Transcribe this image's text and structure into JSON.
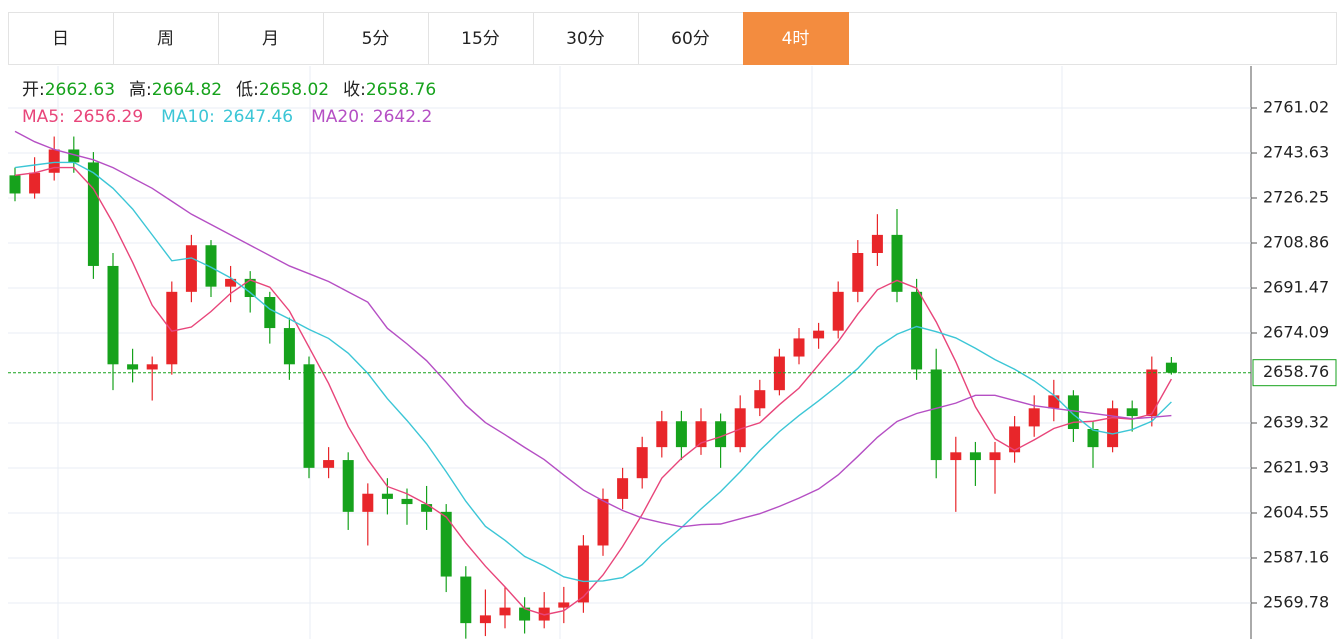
{
  "tabs": [
    "日",
    "周",
    "月",
    "5分",
    "15分",
    "30分",
    "60分",
    "4时"
  ],
  "active_tab": 7,
  "chart_data": {
    "type": "candlestick",
    "ohlc_labels": [
      "开:",
      "高:",
      "低:",
      "收:"
    ],
    "up_color": "#e8262a",
    "down_color": "#16a21c",
    "ylim": [
      2555.87,
      2777.25
    ],
    "yticks": [
      2761.02,
      2743.63,
      2726.25,
      2708.86,
      2691.47,
      2674.09,
      2639.32,
      2621.93,
      2604.55,
      2587.16,
      2569.78
    ],
    "grid": true,
    "ohlc": [
      [
        2735,
        2738,
        2725,
        2728
      ],
      [
        2728,
        2742,
        2726,
        2736
      ],
      [
        2736,
        2750,
        2733,
        2745
      ],
      [
        2745,
        2750,
        2736,
        2740
      ],
      [
        2740,
        2744,
        2695,
        2700
      ],
      [
        2700,
        2705,
        2652,
        2662
      ],
      [
        2662,
        2668,
        2655,
        2660
      ],
      [
        2660,
        2665,
        2648,
        2662
      ],
      [
        2662,
        2694,
        2658,
        2690
      ],
      [
        2690,
        2712,
        2686,
        2708
      ],
      [
        2708,
        2710,
        2688,
        2692
      ],
      [
        2692,
        2700,
        2686,
        2695
      ],
      [
        2695,
        2698,
        2682,
        2688
      ],
      [
        2688,
        2690,
        2670,
        2676
      ],
      [
        2676,
        2680,
        2656,
        2662
      ],
      [
        2662,
        2665,
        2618,
        2622
      ],
      [
        2622,
        2630,
        2618,
        2625
      ],
      [
        2625,
        2628,
        2598,
        2605
      ],
      [
        2605,
        2616,
        2592,
        2612
      ],
      [
        2612,
        2618,
        2604,
        2610
      ],
      [
        2610,
        2614,
        2600,
        2608
      ],
      [
        2608,
        2615,
        2598,
        2605
      ],
      [
        2605,
        2608,
        2574,
        2580
      ],
      [
        2580,
        2584,
        2556,
        2562
      ],
      [
        2562,
        2575,
        2557,
        2565
      ],
      [
        2565,
        2576,
        2560,
        2568
      ],
      [
        2568,
        2572,
        2558,
        2563
      ],
      [
        2563,
        2574,
        2560,
        2568
      ],
      [
        2568,
        2576,
        2562,
        2570
      ],
      [
        2570,
        2596,
        2566,
        2592
      ],
      [
        2592,
        2614,
        2588,
        2610
      ],
      [
        2610,
        2622,
        2606,
        2618
      ],
      [
        2618,
        2634,
        2614,
        2630
      ],
      [
        2630,
        2644,
        2626,
        2640
      ],
      [
        2640,
        2644,
        2625,
        2630
      ],
      [
        2630,
        2645,
        2627,
        2640
      ],
      [
        2640,
        2643,
        2622,
        2630
      ],
      [
        2630,
        2650,
        2628,
        2645
      ],
      [
        2645,
        2656,
        2642,
        2652
      ],
      [
        2652,
        2668,
        2650,
        2665
      ],
      [
        2665,
        2676,
        2662,
        2672
      ],
      [
        2672,
        2678,
        2668,
        2675
      ],
      [
        2675,
        2694,
        2672,
        2690
      ],
      [
        2690,
        2710,
        2686,
        2705
      ],
      [
        2705,
        2720,
        2700,
        2712
      ],
      [
        2712,
        2722,
        2686,
        2690
      ],
      [
        2690,
        2695,
        2656,
        2660
      ],
      [
        2660,
        2668,
        2618,
        2625
      ],
      [
        2625,
        2634,
        2605,
        2628
      ],
      [
        2628,
        2632,
        2615,
        2625
      ],
      [
        2625,
        2632,
        2612,
        2628
      ],
      [
        2628,
        2642,
        2624,
        2638
      ],
      [
        2638,
        2650,
        2634,
        2645
      ],
      [
        2645,
        2656,
        2640,
        2650
      ],
      [
        2650,
        2652,
        2632,
        2637
      ],
      [
        2637,
        2640,
        2622,
        2630
      ],
      [
        2630,
        2648,
        2628,
        2645
      ],
      [
        2645,
        2648,
        2636,
        2642
      ],
      [
        2642,
        2665,
        2638,
        2660
      ],
      [
        2662.63,
        2664.82,
        2658.02,
        2658.76
      ]
    ],
    "series": [
      {
        "name": "MA5:",
        "color": "#e8457a",
        "values": [
          2735,
          2736,
          2738,
          2738,
          2729.8,
          2716.6,
          2701.4,
          2684.8,
          2674.8,
          2676.4,
          2682.4,
          2689.4,
          2694.6,
          2691.8,
          2682.6,
          2668.6,
          2654.6,
          2638,
          2625.2,
          2614.8,
          2612,
          2608,
          2603,
          2593,
          2584,
          2576,
          2567.6,
          2565.2,
          2566.8,
          2572.2,
          2580.6,
          2591.6,
          2604,
          2618,
          2625.6,
          2631.6,
          2634,
          2637,
          2639.4,
          2646.4,
          2652.8,
          2661.8,
          2670.8,
          2681.4,
          2690.8,
          2694.4,
          2691.4,
          2678.4,
          2663,
          2645.6,
          2633.2,
          2628.8,
          2632.8,
          2637.2,
          2639.6,
          2640,
          2641.4,
          2640.8,
          2642.8,
          2656.29
        ]
      },
      {
        "name": "MA10:",
        "color": "#3cc6d6",
        "values": [
          2738,
          2739,
          2740,
          2740,
          2736,
          2730,
          2722,
          2712,
          2702,
          2703.1,
          2699.5,
          2695.4,
          2689.7,
          2683.3,
          2679.5,
          2675.5,
          2672,
          2666.3,
          2658.5,
          2648.7,
          2640.3,
          2631.3,
          2620.5,
          2609.1,
          2599.4,
          2594,
          2587.8,
          2584.1,
          2579.9,
          2578.1,
          2578.3,
          2579.6,
          2584.6,
          2592.4,
          2598.9,
          2606.1,
          2612.8,
          2620.5,
          2628.7,
          2636,
          2642.2,
          2647.9,
          2653.9,
          2660.4,
          2668.6,
          2673.6,
          2676.6,
          2674.6,
          2672.2,
          2668.2,
          2663.8,
          2660.1,
          2655.6,
          2650.1,
          2642.6,
          2636.6,
          2635.1,
          2636.8,
          2640,
          2647.46
        ]
      },
      {
        "name": "MA20:",
        "color": "#b54fc4",
        "values": [
          2752,
          2748,
          2745,
          2743,
          2741,
          2738,
          2734,
          2730,
          2725,
          2720,
          2716,
          2712,
          2708,
          2704,
          2700,
          2697,
          2694,
          2690,
          2686,
          2675.9,
          2669.9,
          2663.4,
          2655.1,
          2646.2,
          2639.5,
          2634.8,
          2629.9,
          2625.2,
          2619.2,
          2613.4,
          2609.3,
          2605.5,
          2602.6,
          2600.8,
          2599.2,
          2600.1,
          2600.3,
          2602.3,
          2604.3,
          2607.1,
          2610.3,
          2613.8,
          2619.3,
          2626.4,
          2633.8,
          2639.9,
          2643,
          2645,
          2647,
          2650,
          2650,
          2648,
          2646,
          2645,
          2644,
          2643,
          2642,
          2641,
          2641.5,
          2642.2
        ]
      }
    ]
  }
}
